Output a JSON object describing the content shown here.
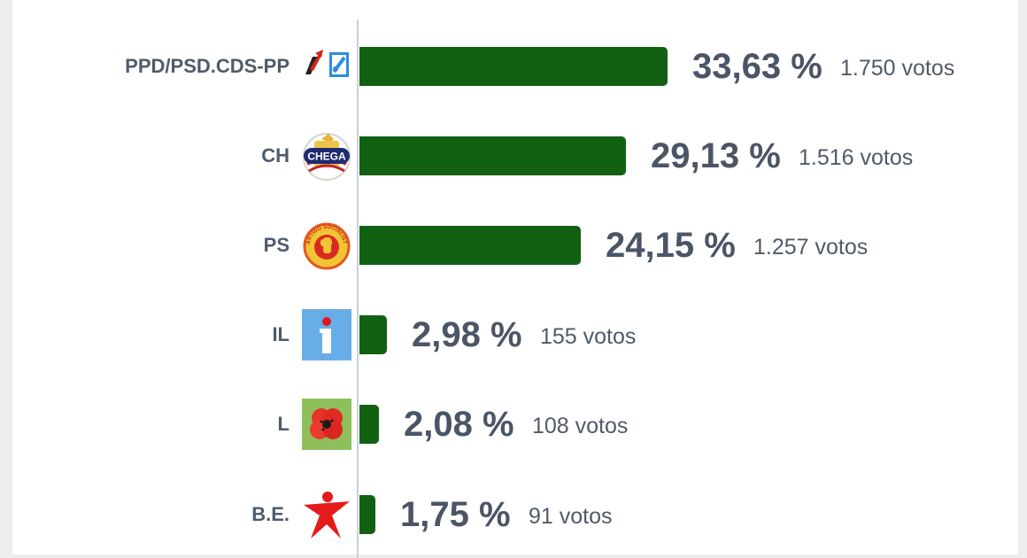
{
  "chart_data": {
    "type": "bar",
    "orientation": "horizontal",
    "categories": [
      "PPD/PSD.CDS-PP",
      "CH",
      "PS",
      "IL",
      "L",
      "B.E."
    ],
    "values": [
      33.63,
      29.13,
      24.15,
      2.98,
      2.08,
      1.75
    ],
    "percent_labels": [
      "33,63 %",
      "29,13 %",
      "24,15 %",
      "2,98 %",
      "2,08 %",
      "1,75 %"
    ],
    "votes": [
      1750,
      1516,
      1257,
      155,
      108,
      91
    ],
    "vote_labels": [
      "1.750 votos",
      "1.516 votos",
      "1.257 votos",
      "155 votos",
      "108 votos",
      "91 votos"
    ],
    "logos": [
      "psd-cds-logo-icon",
      "chega-logo-icon",
      "ps-logo-icon",
      "il-logo-icon",
      "livre-logo-icon",
      "be-logo-icon"
    ],
    "logo_text": {
      "chega": "CHEGA",
      "ps": "PARTIDO SOCIALISTA"
    },
    "bar_color": "#126012",
    "grid": false,
    "legend": "none"
  }
}
